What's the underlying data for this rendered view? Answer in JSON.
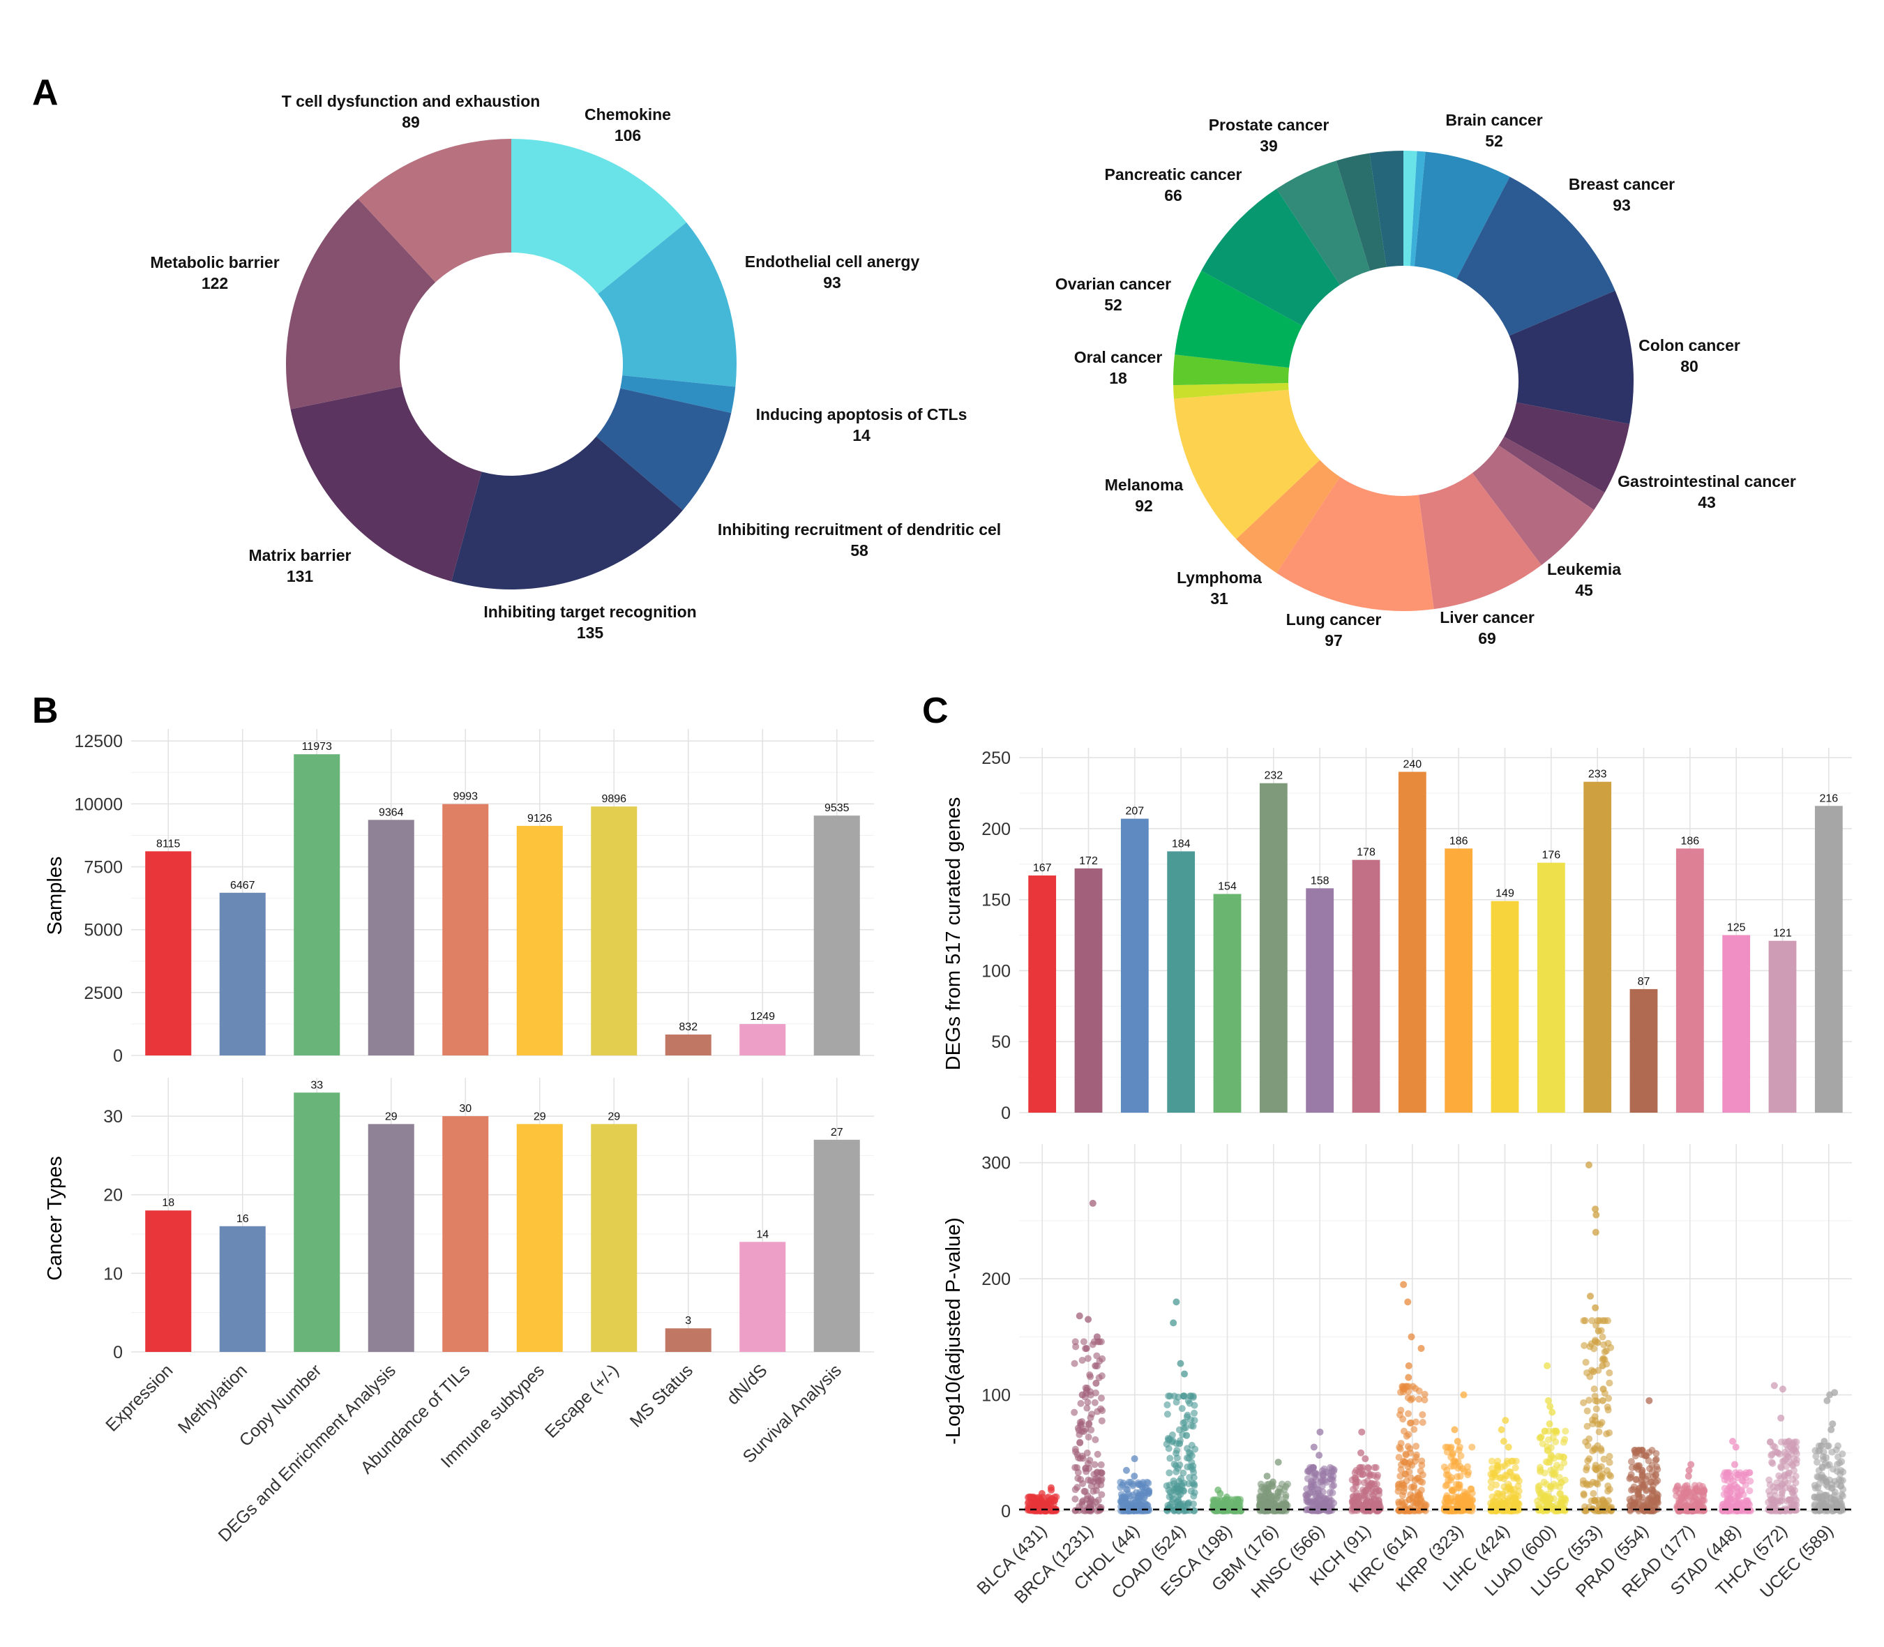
{
  "panels": {
    "A": "A",
    "B": "B",
    "C": "C"
  },
  "chart_data": [
    {
      "id": "A1",
      "type": "pie",
      "variant": "donut",
      "slices": [
        {
          "label": "Chemokine",
          "value": 106,
          "color": "#6ae3e8"
        },
        {
          "label": "Endothelial cell anergy",
          "value": 93,
          "color": "#45b8d8"
        },
        {
          "label": "Inducing apoptosis of CTLs",
          "value": 14,
          "color": "#2f8fc2"
        },
        {
          "label": "Inhibiting recruitment of dendritic cel",
          "value": 58,
          "color": "#2c5d97"
        },
        {
          "label": "Inhibiting target recognition",
          "value": 135,
          "color": "#2d3567"
        },
        {
          "label": "Matrix barrier",
          "value": 131,
          "color": "#5c3460"
        },
        {
          "label": "Metabolic barrier",
          "value": 122,
          "color": "#86506f"
        },
        {
          "label": "T cell dysfunction and exhaustion",
          "value": 89,
          "color": "#b7717f"
        }
      ]
    },
    {
      "id": "A2",
      "type": "pie",
      "variant": "donut",
      "slices": [
        {
          "label": "",
          "value": 8,
          "color": "#6ae3e8"
        },
        {
          "label": "",
          "value": 5,
          "color": "#3cb0d8"
        },
        {
          "label": "Brain cancer",
          "value": 52,
          "color": "#2b8bbd"
        },
        {
          "label": "Breast cancer",
          "value": 93,
          "color": "#2c5a93"
        },
        {
          "label": "Colon cancer",
          "value": 80,
          "color": "#2d3366"
        },
        {
          "label": "Gastrointestinal cancer",
          "value": 43,
          "color": "#5c3560"
        },
        {
          "label": "",
          "value": 12,
          "color": "#824c70"
        },
        {
          "label": "Leukemia",
          "value": 45,
          "color": "#b46a80"
        },
        {
          "label": "Liver cancer",
          "value": 69,
          "color": "#e07f7e"
        },
        {
          "label": "Lung cancer",
          "value": 97,
          "color": "#fd9573"
        },
        {
          "label": "Lymphoma",
          "value": 31,
          "color": "#fda25a"
        },
        {
          "label": "Melanoma",
          "value": 92,
          "color": "#fdd24e"
        },
        {
          "label": "",
          "value": 8,
          "color": "#c9df2c"
        },
        {
          "label": "Oral cancer",
          "value": 18,
          "color": "#5fca2c"
        },
        {
          "label": "Ovarian cancer",
          "value": 52,
          "color": "#00b15a"
        },
        {
          "label": "Pancreatic cancer",
          "value": 66,
          "color": "#08986f"
        },
        {
          "label": "Prostate cancer",
          "value": 39,
          "color": "#328b78"
        },
        {
          "label": "",
          "value": 20,
          "color": "#2b6f6d"
        },
        {
          "label": "",
          "value": 20,
          "color": "#25667a"
        }
      ]
    },
    {
      "id": "B",
      "type": "bar",
      "categories": [
        "Expression",
        "Methylation",
        "Copy Number",
        "DEGs and Enrichment Analysis",
        "Abundance of TILs",
        "Immune subtypes",
        "Escape (+/-)",
        "MS Status",
        "dN/dS",
        "Survival Analysis"
      ],
      "colors": [
        "#e8363a",
        "#6a89b5",
        "#69b479",
        "#908296",
        "#df7f63",
        "#fdc33b",
        "#e4ce50",
        "#c07865",
        "#ee9fc7",
        "#a6a6a6"
      ],
      "series": [
        {
          "name": "Samples",
          "values": [
            8115,
            6467,
            11973,
            9364,
            9993,
            9126,
            9896,
            832,
            1249,
            9535
          ],
          "ylim": [
            0,
            12700
          ],
          "yticks": [
            0,
            2500,
            5000,
            7500,
            10000,
            12500
          ]
        },
        {
          "name": "Cancer Types",
          "values": [
            18,
            16,
            33,
            29,
            30,
            29,
            29,
            3,
            14,
            27
          ],
          "ylim": [
            0,
            34
          ],
          "yticks": [
            0,
            10,
            20,
            30
          ]
        }
      ],
      "ylabels": [
        "Samples",
        "Cancer Types"
      ]
    },
    {
      "id": "C_top",
      "type": "bar",
      "ylabel": "DEGs from 517 curated genes",
      "ylim": [
        0,
        252
      ],
      "yticks": [
        0,
        50,
        100,
        150,
        200,
        250
      ],
      "categories": [
        "BLCA (431)",
        "BRCA (1231)",
        "CHOL (44)",
        "COAD (524)",
        "ESCA (198)",
        "GBM (176)",
        "HNSC (566)",
        "KICH (91)",
        "KIRC (614)",
        "KIRP (323)",
        "LIHC (424)",
        "LUAD (600)",
        "LUSC (553)",
        "PRAD (554)",
        "READ (177)",
        "STAD (448)",
        "THCA (572)",
        "UCEC (589)"
      ],
      "values": [
        167,
        172,
        207,
        184,
        154,
        232,
        158,
        178,
        240,
        186,
        149,
        176,
        233,
        87,
        186,
        125,
        121,
        216
      ],
      "colors": [
        "#e8363a",
        "#a2607a",
        "#5f8ac1",
        "#4c9a96",
        "#6ab56f",
        "#7e9a7b",
        "#9a7aa7",
        "#c27086",
        "#e88a3c",
        "#fdac3c",
        "#f7d43c",
        "#eee04a",
        "#cfa040",
        "#b06a52",
        "#dd7f95",
        "#f08fc3",
        "#cf9cb5",
        "#a6a6a6"
      ]
    },
    {
      "id": "C_bottom",
      "type": "scatter",
      "ylabel": "-Log10(adjusted P-value)",
      "ylim": [
        0,
        310
      ],
      "yticks": [
        0,
        100,
        200,
        300
      ],
      "threshold": 1.3,
      "categories": [
        "BLCA (431)",
        "BRCA (1231)",
        "CHOL (44)",
        "COAD (524)",
        "ESCA (198)",
        "GBM (176)",
        "HNSC (566)",
        "KICH (91)",
        "KIRC (614)",
        "KIRP (323)",
        "LIHC (424)",
        "LUAD (600)",
        "LUSC (553)",
        "PRAD (554)",
        "READ (177)",
        "STAD (448)",
        "THCA (572)",
        "UCEC (589)"
      ],
      "max_values": [
        22,
        265,
        45,
        180,
        18,
        42,
        68,
        68,
        195,
        100,
        78,
        125,
        298,
        95,
        40,
        60,
        108,
        102
      ],
      "outliers": [
        [
          20,
          18,
          15
        ],
        [
          265,
          168,
          165,
          150,
          140,
          125,
          110,
          100
        ],
        [
          45,
          35,
          30
        ],
        [
          180,
          162,
          127,
          118,
          65,
          58
        ],
        [
          18,
          15,
          12
        ],
        [
          42,
          30,
          25
        ],
        [
          68,
          55,
          48
        ],
        [
          68,
          50,
          45
        ],
        [
          195,
          180,
          150,
          140,
          125,
          115,
          105
        ],
        [
          100,
          70,
          60
        ],
        [
          78,
          70,
          60,
          55
        ],
        [
          125,
          95,
          90,
          85,
          75
        ],
        [
          298,
          260,
          255,
          240,
          185,
          175,
          155,
          145,
          125,
          120,
          105,
          95
        ],
        [
          95,
          35,
          30
        ],
        [
          40,
          35,
          30
        ],
        [
          60,
          55,
          40
        ],
        [
          108,
          105,
          80,
          60,
          55
        ],
        [
          102,
          100,
          95,
          75,
          70,
          60
        ]
      ],
      "colors": [
        "#e8363a",
        "#a2607a",
        "#5f8ac1",
        "#4c9a96",
        "#6ab56f",
        "#7e9a7b",
        "#9a7aa7",
        "#c27086",
        "#e88a3c",
        "#fdac3c",
        "#f7d43c",
        "#eee04a",
        "#cfa040",
        "#b06a52",
        "#dd7f95",
        "#f08fc3",
        "#cf9cb5",
        "#a6a6a6"
      ]
    }
  ]
}
